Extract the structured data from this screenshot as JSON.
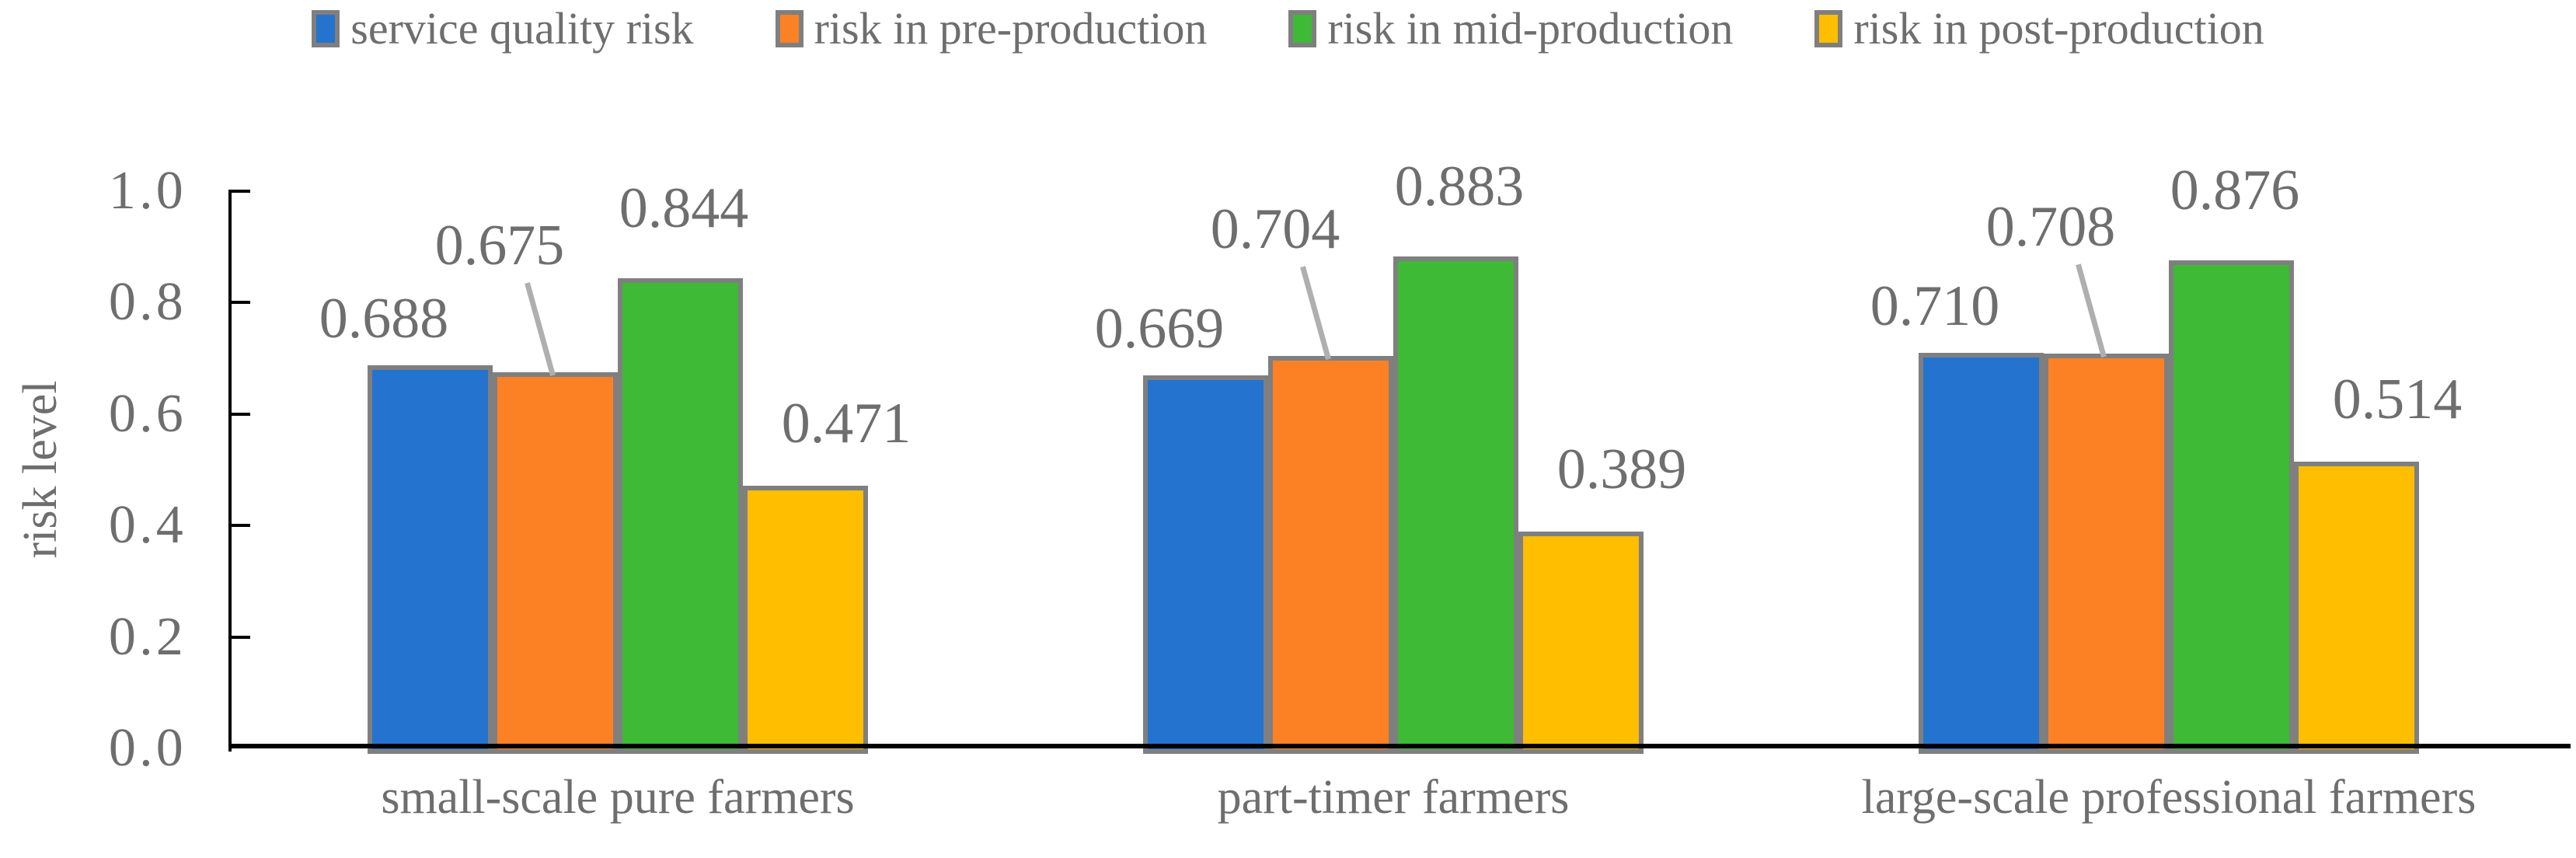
{
  "chart_data": {
    "type": "bar",
    "title": "",
    "ylabel": "risk level",
    "ylim": [
      0.0,
      1.0
    ],
    "ytick_labels": [
      "0.0",
      "0.2",
      "0.4",
      "0.6",
      "0.8",
      "1.0"
    ],
    "grid": false,
    "legend_position": "top",
    "categories": [
      "small-scale pure farmers",
      "part-timer farmers",
      "large-scale professional farmers"
    ],
    "series": [
      {
        "name": "service quality risk",
        "color": "#2473CE",
        "values": [
          0.688,
          0.669,
          0.71
        ],
        "labels": [
          "0.688",
          "0.669",
          "0.710"
        ]
      },
      {
        "name": "risk in pre-production",
        "color": "#FC8125",
        "values": [
          0.675,
          0.704,
          0.708
        ],
        "labels": [
          "0.675",
          "0.704",
          "0.708"
        ]
      },
      {
        "name": "risk in mid-production",
        "color": "#3EBA36",
        "values": [
          0.844,
          0.883,
          0.876
        ],
        "labels": [
          "0.844",
          "0.883",
          "0.876"
        ]
      },
      {
        "name": "risk in post-production",
        "color": "#FFBE00",
        "values": [
          0.471,
          0.389,
          0.514
        ],
        "labels": [
          "0.471",
          "0.389",
          "0.514"
        ]
      }
    ],
    "colors": {
      "bar_border": "#7F7F7F",
      "text": "#6E6E6E",
      "axis": "#000000",
      "leader_line": "#AFAFAF"
    }
  }
}
